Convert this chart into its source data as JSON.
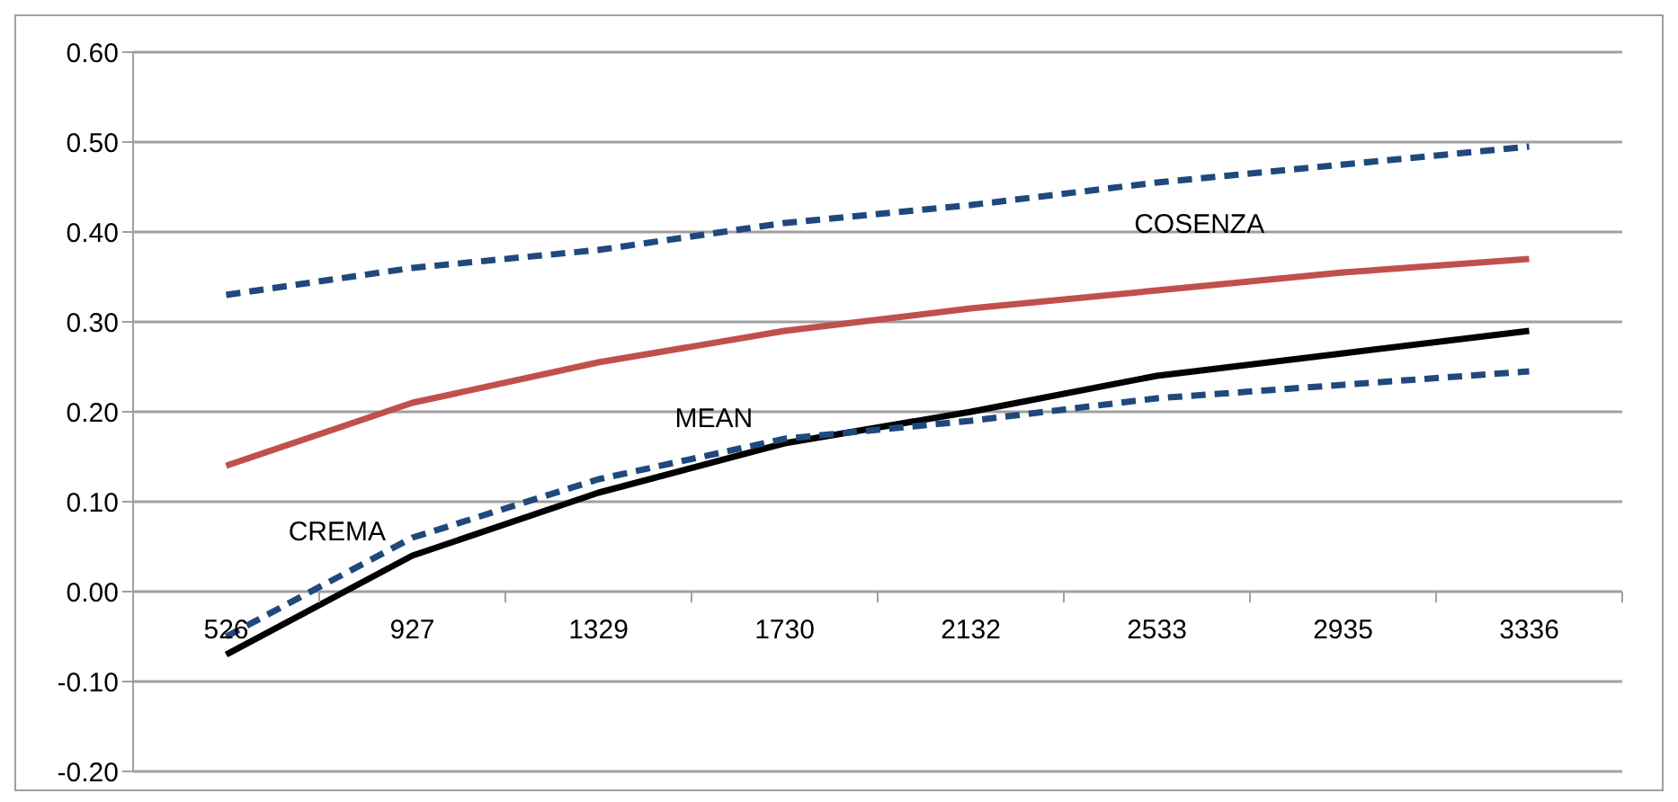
{
  "chart_data": {
    "type": "line",
    "categories": [
      "526",
      "927",
      "1329",
      "1730",
      "2132",
      "2533",
      "2935",
      "3336"
    ],
    "series": [
      {
        "color": "#1f497d",
        "line_style": "dashed",
        "values": [
          0.33,
          0.36,
          0.38,
          0.41,
          0.43,
          0.455,
          0.475,
          0.495
        ]
      },
      {
        "color": "#c0504d",
        "line_style": "solid",
        "values": [
          0.14,
          0.21,
          0.255,
          0.29,
          0.315,
          0.335,
          0.355,
          0.37
        ]
      },
      {
        "color": "#000000",
        "line_style": "solid",
        "values": [
          -0.07,
          0.04,
          0.11,
          0.165,
          0.2,
          0.24,
          0.265,
          0.29
        ]
      },
      {
        "color": "#1f497d",
        "line_style": "dashed",
        "values": [
          -0.05,
          0.06,
          0.125,
          0.17,
          0.19,
          0.215,
          0.23,
          0.245
        ]
      }
    ],
    "ylim": [
      -0.2,
      0.6
    ],
    "yticks": [
      {
        "value": -0.2,
        "label": "-0.20"
      },
      {
        "value": -0.1,
        "label": "-0.10"
      },
      {
        "value": 0,
        "label": "0.00"
      },
      {
        "value": 0.1,
        "label": "0.10"
      },
      {
        "value": 0.2,
        "label": "0.20"
      },
      {
        "value": 0.3,
        "label": "0.30"
      },
      {
        "value": 0.4,
        "label": "0.40"
      },
      {
        "value": 0.5,
        "label": "0.50"
      },
      {
        "value": 0.6,
        "label": "0.60"
      }
    ],
    "grid": "y",
    "marker": "none",
    "annotations": [
      "COSENZA",
      "MEAN",
      "CREMA"
    ]
  }
}
